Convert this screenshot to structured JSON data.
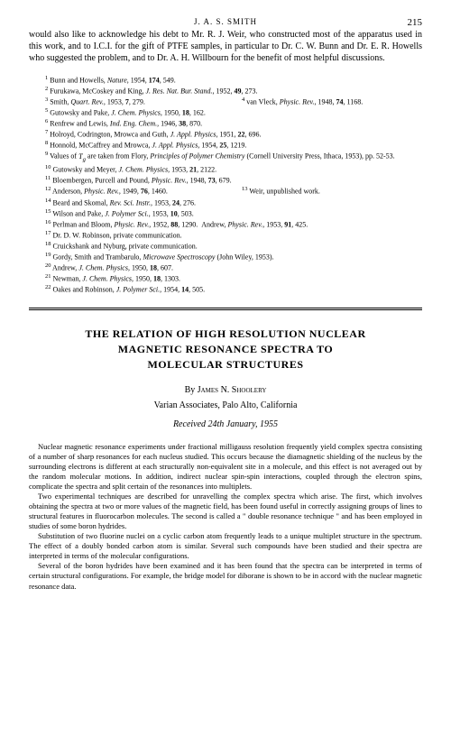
{
  "page": {
    "running_header": "J. A. S. SMITH",
    "page_number": "215"
  },
  "acknowledgment": "would also like to acknowledge his debt to Mr. R. J. Weir, who constructed most of the apparatus used in this work, and to I.C.I. for the gift of PTFE samples, in particular to Dr. C. W. Bunn and Dr. E. R. Howells who suggested the problem, and to Dr. A. H. Willbourn for the benefit of most helpful discussions.",
  "references": [
    {
      "num": "1",
      "text": "Bunn and Howells, <em>Nature</em>, 1954, <b>174</b>, 549."
    },
    {
      "num": "2",
      "text": "Furukawa, McCoskey and King, <em>J. Res. Nat. Bur. Stand.</em>, 1952, <b>49</b>, 273."
    },
    {
      "num": "3",
      "text": "Smith, <em>Quart. Rev.</em>, 1953, <b>7</b>, 279."
    },
    {
      "num": "4",
      "text": "van Vleck, <em>Physic. Rev.</em>, 1948, <b>74</b>, 1168."
    },
    {
      "num": "5",
      "text": "Gutowsky and Pake, <em>J. Chem. Physics</em>, 1950, <b>18</b>, 162."
    },
    {
      "num": "6",
      "text": "Renfrew and Lewis, <em>Ind. Eng. Chem.</em>, 1946, <b>38</b>, 870."
    },
    {
      "num": "7",
      "text": "Holroyd, Codrington, Mrowca and Guth, <em>J. Appl. Physics</em>, 1951, <b>22</b>, 696."
    },
    {
      "num": "8",
      "text": "Honnold, McCaffrey and Mrowca, <em>J. Appl. Physics</em>, 1954, <b>25</b>, 1219."
    },
    {
      "num": "9",
      "text": "Values of <em>T<sub>g</sub></em> are taken from Flory, <em>Principles of Polymer Chemistry</em> (Cornell University Press, Ithaca, 1953), pp. 52-53."
    },
    {
      "num": "10",
      "text": "Gutowsky and Meyer, <em>J. Chem. Physics</em>, 1953, <b>21</b>, 2122."
    },
    {
      "num": "11",
      "text": "Bloembergen, Purcell and Pound, <em>Physic. Rev.</em>, 1948, <b>73</b>, 679."
    },
    {
      "num": "12",
      "text": "Anderson, <em>Physic. Rev.</em>, 1949, <b>76</b>, 1460."
    },
    {
      "num": "13",
      "text": "Weir, unpublished work."
    },
    {
      "num": "14",
      "text": "Beard and Skomal, <em>Rev. Sci. Instr.</em>, 1953, <b>24</b>, 276."
    },
    {
      "num": "15",
      "text": "Wilson and Pake, <em>J. Polymer Sci.</em>, 1953, <b>10</b>, 503."
    },
    {
      "num": "16",
      "text": "Perlman and Bloom, <em>Physic. Rev.</em>, 1952, <b>88</b>, 1290. &nbsp;Andrew, <em>Physic. Rev.</em>, 1953, <b>91</b>, 425."
    },
    {
      "num": "17",
      "text": "Dr. D. W. Robinson, private communication."
    },
    {
      "num": "18",
      "text": "Cruickshank and Nyburg, private communication."
    },
    {
      "num": "19",
      "text": "Gordy, Smith and Trambarulo, <em>Microwave Spectroscopy</em> (John Wiley, 1953)."
    },
    {
      "num": "20",
      "text": "Andrew, <em>J. Chem. Physics</em>, 1950, <b>18</b>, 607."
    },
    {
      "num": "21",
      "text": "Newman, <em>J. Chem. Physics</em>, 1950, <b>18</b>, 1303."
    },
    {
      "num": "22",
      "text": "Oakes and Robinson, <em>J. Polymer Sci.</em>, 1954, <b>14</b>, 505."
    }
  ],
  "article": {
    "title_line1": "THE RELATION OF HIGH RESOLUTION NUCLEAR",
    "title_line2": "MAGNETIC RESONANCE SPECTRA TO",
    "title_line3": "MOLECULAR STRUCTURES",
    "by": "By",
    "author": "James N. Shoolery",
    "affiliation": "Varian Associates, Palo Alto, California",
    "received": "Received 24th January, 1955",
    "abstract": [
      "Nuclear magnetic resonance experiments under fractional milligauss resolution frequently yield complex spectra consisting of a number of sharp resonances for each nucleus studied. This occurs because the diamagnetic shielding of the nucleus by the surrounding electrons is different at each structurally non-equivalent site in a molecule, and this effect is not averaged out by the random molecular motions. In addition, indirect nuclear spin-spin interactions, coupled through the electron spins, complicate the spectra and split certain of the resonances into multiplets.",
      "Two experimental techniques are described for unravelling the complex spectra which arise. The first, which involves obtaining the spectra at two or more values of the magnetic field, has been found useful in correctly assigning groups of lines to structural features in fluorocarbon molecules. The second is called a \" double resonance technique \" and has been employed in studies of some boron hydrides.",
      "Substitution of two fluorine nuclei on a cyclic carbon atom frequently leads to a unique multiplet structure in the spectrum. The effect of a doubly bonded carbon atom is similar. Several such compounds have been studied and their spectra are interpreted in terms of the molecular configurations.",
      "Several of the boron hydrides have been examined and it has been found that the spectra can be interpreted in terms of certain structural configurations. For example, the bridge model for diborane is shown to be in accord with the nuclear magnetic resonance data."
    ]
  }
}
